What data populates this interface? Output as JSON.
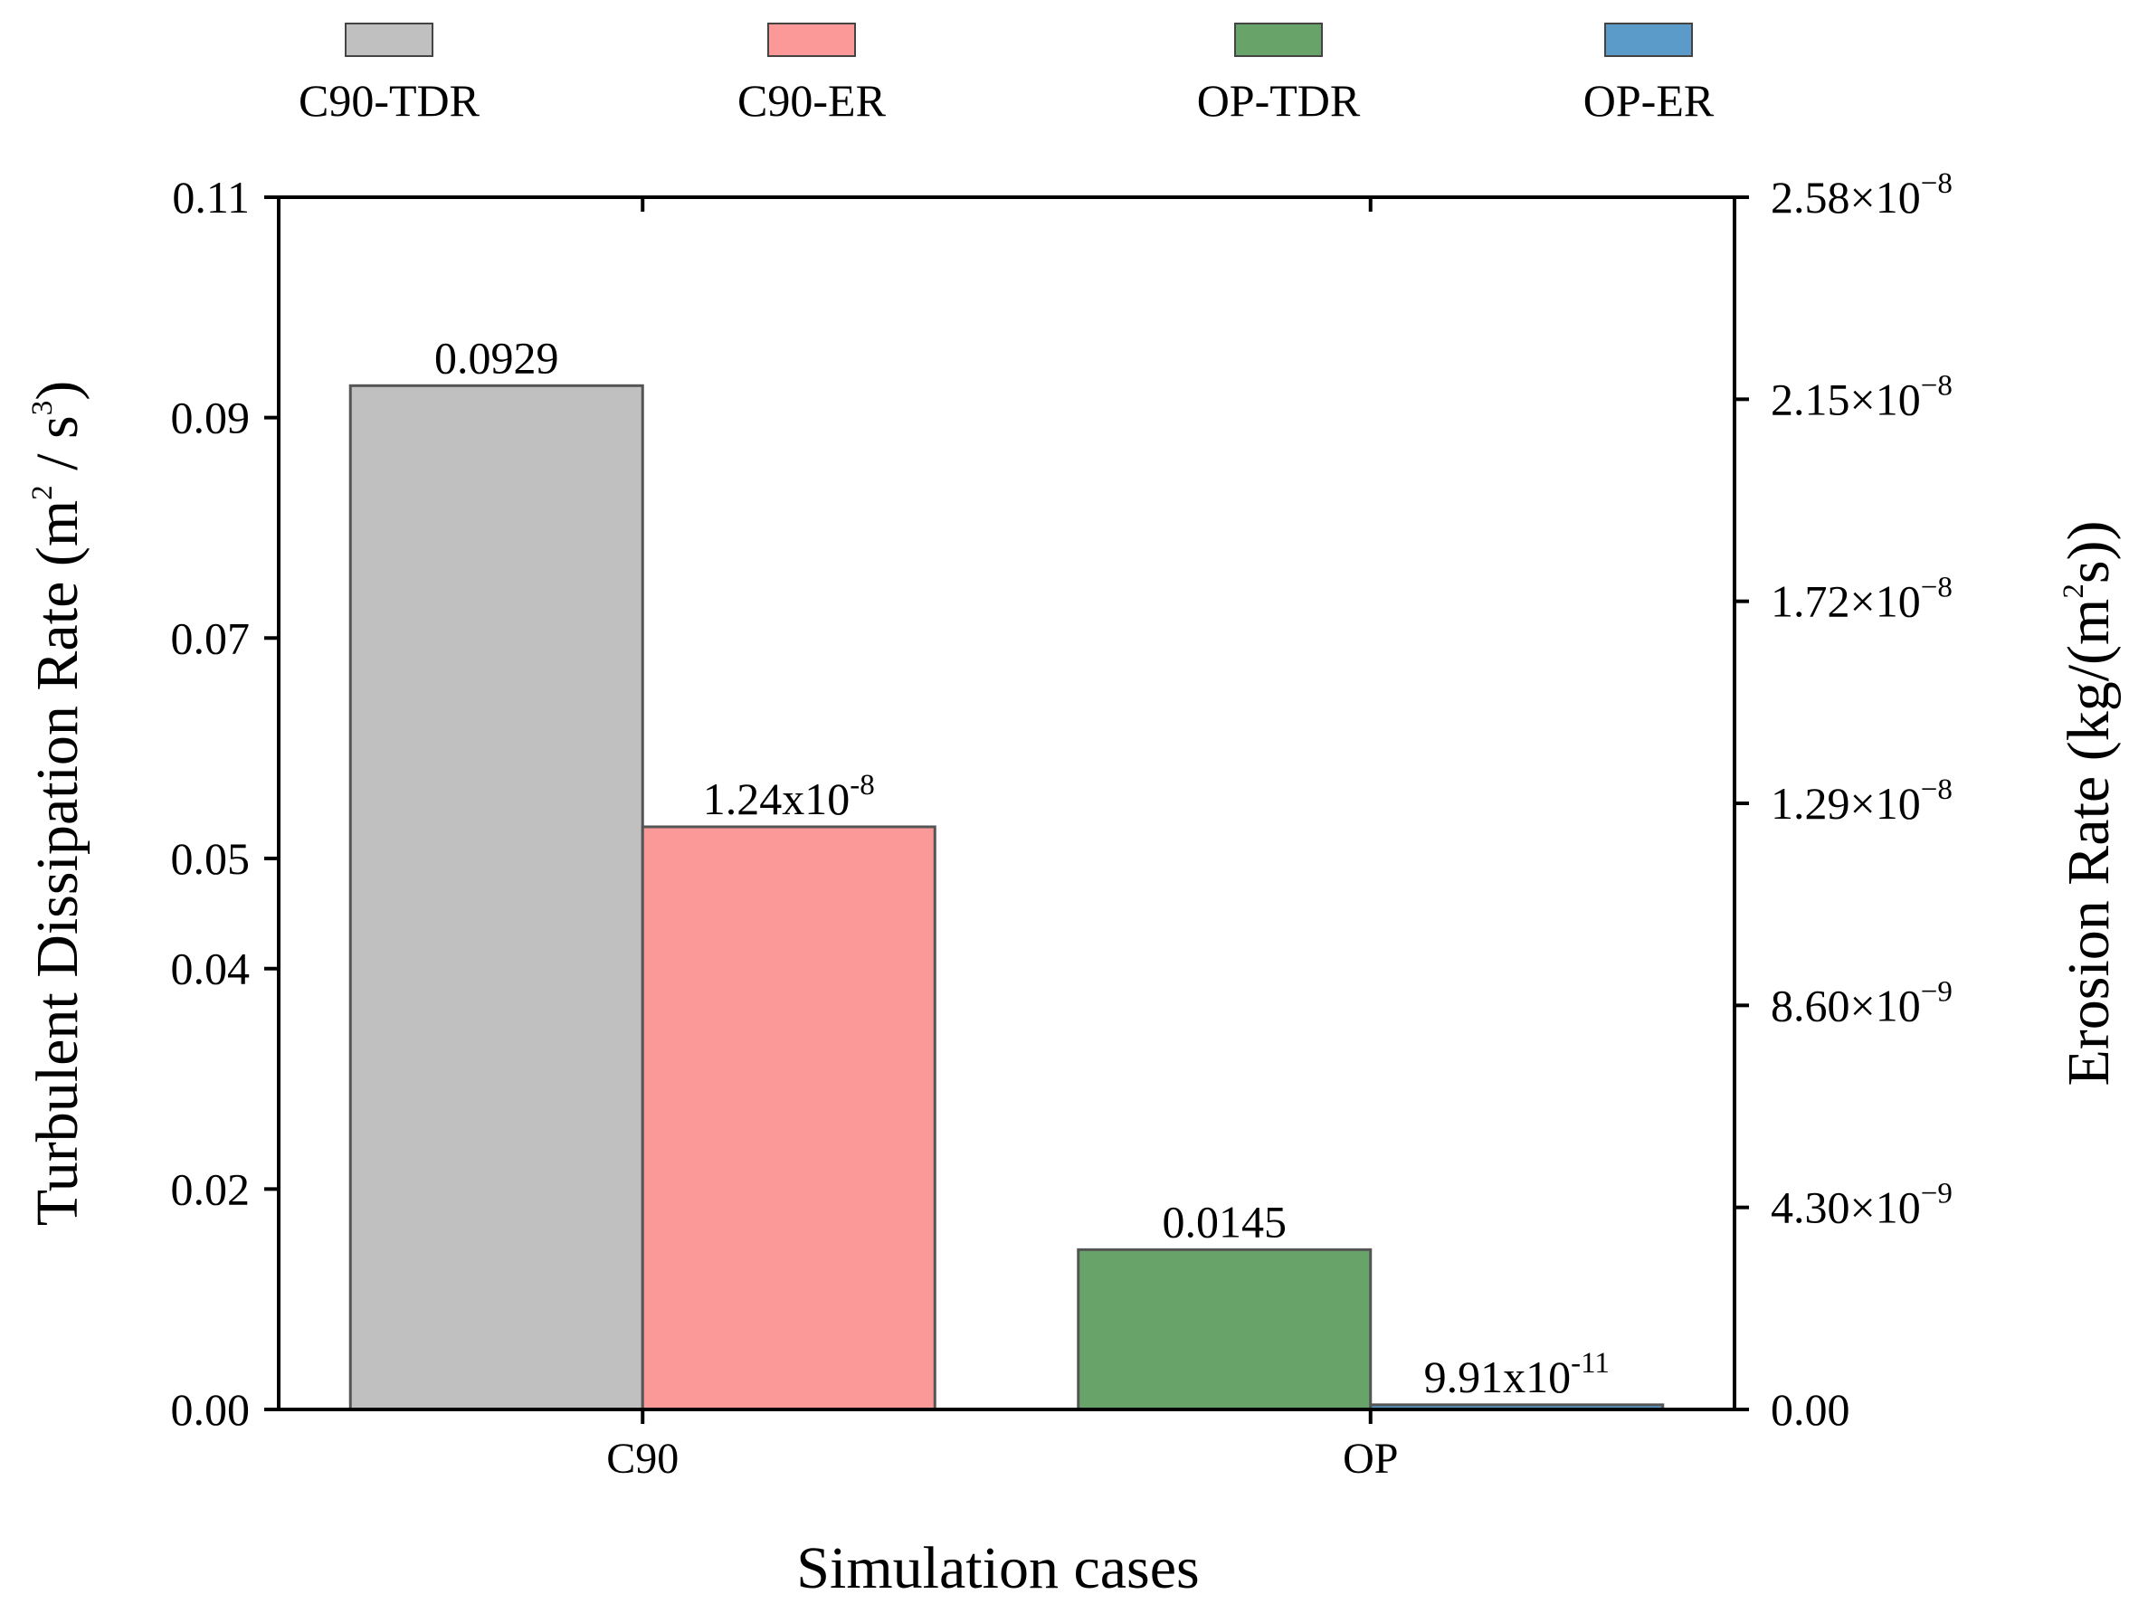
{
  "chart_data": {
    "type": "bar",
    "categories": [
      "C90",
      "OP"
    ],
    "xlabel": "Simulation cases",
    "left_axis": {
      "title_main": "Turbulent Dissipation Rate (m",
      "title_sup1": "2",
      "title_mid": " / s",
      "title_sup2": "3",
      "title_end": ")",
      "ylim": [
        0,
        0.11
      ],
      "ticks": [
        0.0,
        0.02,
        0.04,
        0.05,
        0.07,
        0.09,
        0.11
      ],
      "tick_labels": [
        "0.00",
        "0.02",
        "0.04",
        "0.05",
        "0.07",
        "0.09",
        "0.11"
      ]
    },
    "right_axis": {
      "title_main": "Erosion Rate (kg/(m",
      "title_sup": "2",
      "title_end": "s))",
      "ylim": [
        0,
        2.58e-08
      ],
      "ticks": [
        0,
        4.3e-09,
        8.6e-09,
        1.29e-08,
        1.72e-08,
        2.15e-08,
        2.58e-08
      ],
      "tick_labels": [
        {
          "base": "0.00",
          "exp": ""
        },
        {
          "base": "4.30×10",
          "exp": "−9"
        },
        {
          "base": "8.60×10",
          "exp": "−9"
        },
        {
          "base": "1.29×10",
          "exp": "−8"
        },
        {
          "base": "1.72×10",
          "exp": "−8"
        },
        {
          "base": "2.15×10",
          "exp": "−8"
        },
        {
          "base": "2.58×10",
          "exp": "−8"
        }
      ]
    },
    "series": [
      {
        "name": "C90-TDR",
        "axis": "left",
        "category": "C90",
        "value": 0.0929,
        "color": "#c0c0c0",
        "label_base": "0.0929",
        "label_exp": ""
      },
      {
        "name": "C90-ER",
        "axis": "right",
        "category": "C90",
        "value": 1.24e-08,
        "color": "#fb9898",
        "label_base": "1.24x10",
        "label_exp": "-8"
      },
      {
        "name": "OP-TDR",
        "axis": "left",
        "category": "OP",
        "value": 0.0145,
        "color": "#68a469",
        "label_base": "0.0145",
        "label_exp": ""
      },
      {
        "name": "OP-ER",
        "axis": "right",
        "category": "OP",
        "value": 9.91e-11,
        "color": "#5b9bc9",
        "label_base": "9.91x10",
        "label_exp": "-11"
      }
    ],
    "legend": [
      "C90-TDR",
      "C90-ER",
      "OP-TDR",
      "OP-ER"
    ]
  }
}
